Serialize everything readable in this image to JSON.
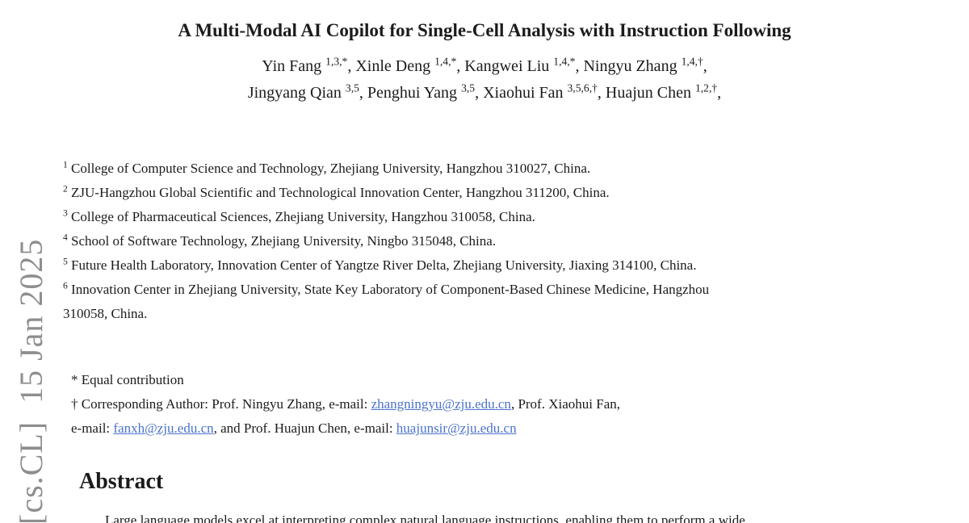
{
  "colors": {
    "text": "#1b1b1b",
    "link": "#4b73cd",
    "watermark": "#8e8e8e"
  },
  "watermark": {
    "text": "[cs.CL]  15 Jan 2025"
  },
  "title": "A Multi-Modal AI Copilot for Single-Cell Analysis with Instruction Following",
  "authors": {
    "line1": [
      {
        "name": "Yin Fang",
        "sup": "1,3,*"
      },
      {
        "name": "Xinle Deng",
        "sup": "1,4,*"
      },
      {
        "name": "Kangwei Liu",
        "sup": "1,4,*"
      },
      {
        "name": "Ningyu Zhang",
        "sup": "1,4,†"
      }
    ],
    "line2": [
      {
        "name": "Jingyang Qian",
        "sup": "3,5"
      },
      {
        "name": "Penghui Yang",
        "sup": "3,5"
      },
      {
        "name": "Xiaohui Fan",
        "sup": "3,5,6,†"
      },
      {
        "name": "Huajun Chen",
        "sup": "1,2,†"
      }
    ]
  },
  "affiliations": [
    {
      "sup": "1",
      "text": "College of Computer Science and Technology, Zhejiang University, Hangzhou 310027, China."
    },
    {
      "sup": "2",
      "text": "ZJU-Hangzhou Global Scientific and Technological Innovation Center, Hangzhou 311200, China."
    },
    {
      "sup": "3",
      "text": "College of Pharmaceutical Sciences, Zhejiang University, Hangzhou 310058, China."
    },
    {
      "sup": "4",
      "text": "School of Software Technology, Zhejiang University, Ningbo 315048, China."
    },
    {
      "sup": "5",
      "text": "Future Health Laboratory, Innovation Center of Yangtze River Delta, Zhejiang University, Jiaxing 314100, China."
    },
    {
      "sup": "6",
      "text": "Innovation Center in Zhejiang University, State Key Laboratory of Component-Based Chinese Medicine, Hangzhou",
      "text2": "310058, China."
    }
  ],
  "footnotes": {
    "equal_contribution": "* Equal contribution",
    "corresponding_segments": [
      {
        "type": "text",
        "value": "† Corresponding Author: Prof. Ningyu Zhang, e-mail: "
      },
      {
        "type": "link",
        "value": "zhangningyu@zju.edu.cn"
      },
      {
        "type": "text",
        "value": ", Prof. Xiaohui Fan,"
      },
      {
        "type": "br"
      },
      {
        "type": "text",
        "value": "e-mail: "
      },
      {
        "type": "link",
        "value": "fanxh@zju.edu.cn"
      },
      {
        "type": "text",
        "value": ", and Prof. Huajun Chen, e-mail: "
      },
      {
        "type": "link",
        "value": "huajunsir@zju.edu.cn"
      }
    ]
  },
  "abstract": {
    "heading": "Abstract",
    "first_line": "Large language models excel at interpreting complex natural language instructions, enabling them to perform a wide"
  }
}
